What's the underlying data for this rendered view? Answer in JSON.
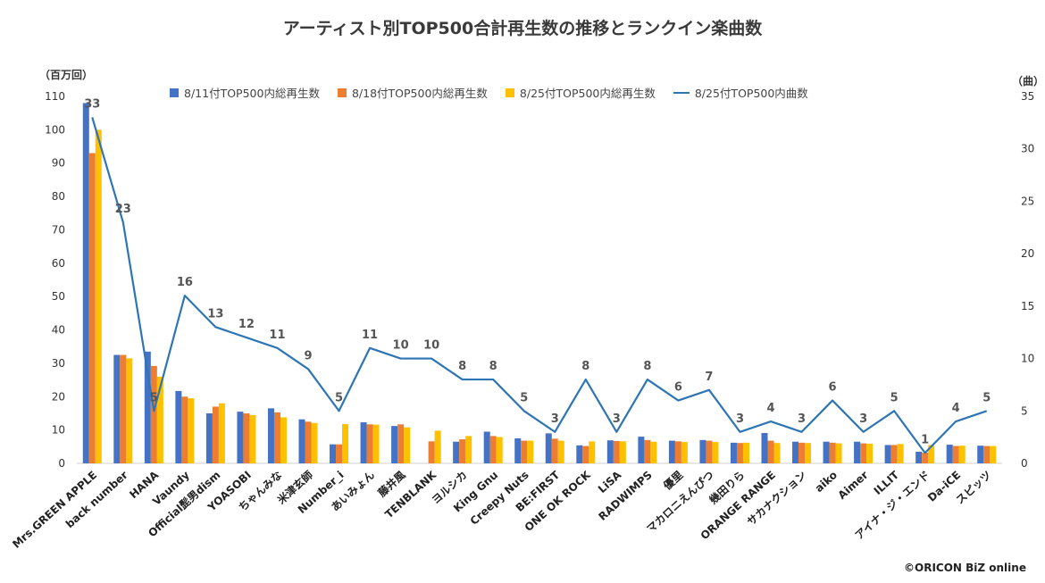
{
  "chart_data": {
    "type": "bar",
    "title": "アーティスト別TOP500合計再生数の推移とランクイン楽曲数",
    "ylabel_left": "（百万回）",
    "ylabel_right": "（曲）",
    "ylim_left": [
      0,
      110
    ],
    "yticks_left": [
      0,
      10,
      20,
      30,
      40,
      50,
      60,
      70,
      80,
      90,
      100,
      110
    ],
    "ylim_right": [
      0,
      35
    ],
    "yticks_right": [
      0,
      5,
      10,
      15,
      20,
      25,
      30,
      35
    ],
    "legend_position": "top",
    "categories": [
      "Mrs.GREEN APPLE",
      "back number",
      "HANA",
      "Vaundy",
      "Official髭男dism",
      "YOASOBI",
      "ちゃんみな",
      "米津玄師",
      "Number_i",
      "あいみょん",
      "藤井風",
      "TENBLANK",
      "ヨルシカ",
      "King Gnu",
      "Creepy Nuts",
      "BE:FIRST",
      "ONE OK ROCK",
      "LiSA",
      "RADWIMPS",
      "優里",
      "マカロニえんぴつ",
      "幾田りら",
      "ORANGE RANGE",
      "サカナクション",
      "aiko",
      "Aimer",
      "ILLIT",
      "アイナ・ジ・エンド",
      "Da-iCE",
      "スピッツ"
    ],
    "series": [
      {
        "name": "8/11付TOP500内総再生数",
        "kind": "bar",
        "axis": "left",
        "color": "#4472C4",
        "values": [
          108,
          32.5,
          33.5,
          21.7,
          15,
          15.5,
          16.5,
          13.2,
          5.7,
          12.3,
          11.2,
          null,
          6.5,
          9.5,
          7.5,
          9,
          5.4,
          6.9,
          8,
          6.8,
          7,
          6.2,
          9.1,
          6.5,
          6.5,
          6.5,
          5.5,
          3.5,
          5.6,
          5.3
        ]
      },
      {
        "name": "8/18付TOP500内総再生数",
        "kind": "bar",
        "axis": "left",
        "color": "#ED7D31",
        "values": [
          93,
          32.5,
          29.2,
          20,
          17,
          15,
          15.3,
          12.5,
          5.7,
          11.7,
          11.7,
          6.6,
          7.2,
          8.2,
          6.8,
          7.4,
          5.2,
          6.7,
          7,
          6.6,
          6.8,
          6.1,
          6.8,
          6.2,
          6.2,
          6,
          5.5,
          3.2,
          5.2,
          5.2
        ]
      },
      {
        "name": "8/25付TOP500内総再生数",
        "kind": "bar",
        "axis": "left",
        "color": "#FFC000",
        "values": [
          100,
          31.5,
          26,
          19.5,
          18,
          14.5,
          13.8,
          12.1,
          11.8,
          11.6,
          10.8,
          9.8,
          8.2,
          7.9,
          6.8,
          6.8,
          6.6,
          6.6,
          6.5,
          6.4,
          6.4,
          6.2,
          6.1,
          6.1,
          6,
          5.9,
          5.8,
          5.5,
          5.3,
          5.2
        ]
      },
      {
        "name": "8/25付TOP500内曲数",
        "kind": "line",
        "axis": "right",
        "color": "#2E75B6",
        "values": [
          33,
          23,
          5,
          16,
          13,
          12,
          11,
          9,
          5,
          11,
          10,
          10,
          8,
          8,
          5,
          3,
          8,
          3,
          8,
          6,
          7,
          3,
          4,
          3,
          6,
          3,
          5,
          1,
          4,
          5
        ]
      }
    ]
  },
  "credit": "©ORICON BiZ online"
}
